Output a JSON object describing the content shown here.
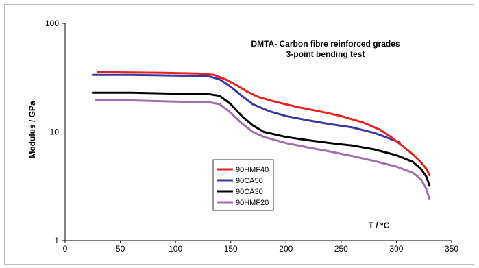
{
  "chart_data": {
    "type": "line",
    "title": "DMTA- Carbon fibre reinforced grades",
    "subtitle": "3-point bending test",
    "xlabel": "T / °C",
    "ylabel": "Modulus / GPa",
    "xlim": [
      0,
      350
    ],
    "ylim": [
      1,
      100
    ],
    "y_scale": "log",
    "x_ticks": [
      0,
      50,
      100,
      150,
      200,
      250,
      300,
      350
    ],
    "y_ticks": [
      1,
      10,
      100
    ],
    "grid": "horizontal",
    "legend_position": "center-left",
    "series": [
      {
        "name": "90HMF40",
        "color": "#e8201c",
        "points": [
          [
            30,
            35.5
          ],
          [
            60,
            35.3
          ],
          [
            90,
            35
          ],
          [
            120,
            34.5
          ],
          [
            135,
            33.5
          ],
          [
            145,
            30.5
          ],
          [
            155,
            27
          ],
          [
            165,
            23.5
          ],
          [
            175,
            21
          ],
          [
            190,
            19
          ],
          [
            210,
            17
          ],
          [
            230,
            15.5
          ],
          [
            250,
            14
          ],
          [
            270,
            12.2
          ],
          [
            285,
            10.5
          ],
          [
            295,
            9
          ],
          [
            305,
            7.5
          ],
          [
            315,
            6.2
          ],
          [
            322,
            5.3
          ],
          [
            327,
            4.6
          ],
          [
            330,
            4
          ]
        ]
      },
      {
        "name": "90CA50",
        "color": "#3a38a0",
        "points": [
          [
            25,
            33.5
          ],
          [
            60,
            33.5
          ],
          [
            100,
            33
          ],
          [
            130,
            32.5
          ],
          [
            140,
            30.5
          ],
          [
            150,
            26
          ],
          [
            160,
            21.5
          ],
          [
            170,
            18
          ],
          [
            185,
            15.5
          ],
          [
            200,
            14
          ],
          [
            220,
            12.8
          ],
          [
            240,
            11.8
          ],
          [
            260,
            11
          ],
          [
            280,
            9.8
          ],
          [
            295,
            8.6
          ],
          [
            303,
            8
          ]
        ]
      },
      {
        "name": "90CA30",
        "color": "#000000",
        "points": [
          [
            25,
            23
          ],
          [
            60,
            23
          ],
          [
            100,
            22.5
          ],
          [
            130,
            22.3
          ],
          [
            140,
            21.5
          ],
          [
            150,
            18
          ],
          [
            160,
            14
          ],
          [
            170,
            11.5
          ],
          [
            180,
            10
          ],
          [
            200,
            9
          ],
          [
            220,
            8.4
          ],
          [
            240,
            7.9
          ],
          [
            260,
            7.5
          ],
          [
            280,
            6.9
          ],
          [
            300,
            6.1
          ],
          [
            315,
            5.3
          ],
          [
            322,
            4.6
          ],
          [
            327,
            3.9
          ],
          [
            330,
            3.2
          ]
        ]
      },
      {
        "name": "90HMF20",
        "color": "#a06ea8",
        "points": [
          [
            28,
            19.5
          ],
          [
            60,
            19.5
          ],
          [
            100,
            19
          ],
          [
            130,
            18.8
          ],
          [
            140,
            18
          ],
          [
            150,
            15
          ],
          [
            160,
            12
          ],
          [
            170,
            10
          ],
          [
            180,
            9
          ],
          [
            200,
            7.9
          ],
          [
            220,
            7.2
          ],
          [
            240,
            6.6
          ],
          [
            260,
            6
          ],
          [
            280,
            5.4
          ],
          [
            300,
            4.8
          ],
          [
            315,
            4.2
          ],
          [
            322,
            3.7
          ],
          [
            327,
            3
          ],
          [
            330,
            2.4
          ]
        ]
      }
    ]
  }
}
